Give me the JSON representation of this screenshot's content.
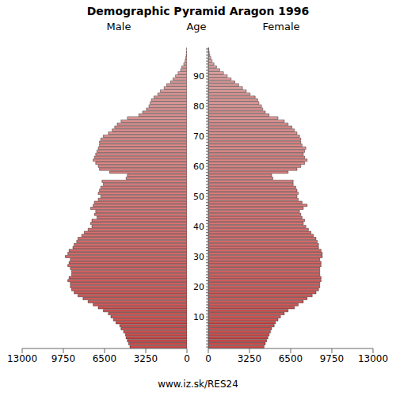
{
  "chart_data": {
    "type": "bar",
    "orientation": "horizontal",
    "title": "Demographic Pyramid Aragon 1996",
    "footer": "www.iz.sk/RES24",
    "y_label": "Age",
    "categories": [
      null,
      null,
      null,
      null,
      null,
      null,
      null,
      null,
      null,
      null,
      "10",
      null,
      null,
      null,
      null,
      null,
      null,
      null,
      null,
      null,
      "20",
      null,
      null,
      null,
      null,
      null,
      null,
      null,
      null,
      null,
      "30",
      null,
      null,
      null,
      null,
      null,
      null,
      null,
      null,
      null,
      "40",
      null,
      null,
      null,
      null,
      null,
      null,
      null,
      null,
      null,
      "50",
      null,
      null,
      null,
      null,
      null,
      null,
      null,
      null,
      null,
      "60",
      null,
      null,
      null,
      null,
      null,
      null,
      null,
      null,
      null,
      "70",
      null,
      null,
      null,
      null,
      null,
      null,
      null,
      null,
      null,
      "80",
      null,
      null,
      null,
      null,
      null,
      null,
      null,
      null,
      null,
      "90",
      null,
      null,
      null,
      null,
      null,
      null,
      null,
      null,
      null
    ],
    "series": [
      {
        "name": "Male",
        "color": "#d04848",
        "values": [
          4500,
          4600,
          4700,
          4800,
          4850,
          5000,
          5200,
          5300,
          5600,
          5800,
          6000,
          6200,
          6600,
          7000,
          7400,
          7800,
          8200,
          8600,
          8900,
          9100,
          9200,
          9200,
          9400,
          9300,
          9100,
          9100,
          9200,
          9400,
          9300,
          9200,
          9600,
          9400,
          9300,
          9000,
          8900,
          8700,
          8600,
          8300,
          8100,
          7800,
          7500,
          7600,
          7500,
          7100,
          7300,
          7200,
          7600,
          7400,
          7300,
          7000,
          6800,
          7000,
          6900,
          6800,
          6600,
          6700,
          4800,
          4700,
          6100,
          6900,
          7000,
          7200,
          7400,
          7300,
          7200,
          7100,
          7000,
          6900,
          6900,
          6800,
          6600,
          6200,
          5900,
          5700,
          5500,
          5200,
          4700,
          3800,
          3500,
          3200,
          3000,
          2900,
          2800,
          2600,
          2300,
          2100,
          1800,
          1600,
          1300,
          1100,
          900,
          700,
          500,
          400,
          250,
          150,
          100,
          60,
          30,
          15
        ]
      },
      {
        "name": "Female",
        "color": "#d04848",
        "values": [
          4400,
          4500,
          4600,
          4700,
          4800,
          4900,
          5000,
          5200,
          5300,
          5500,
          5700,
          6000,
          6300,
          6800,
          7100,
          7500,
          7800,
          8200,
          8500,
          8700,
          8800,
          8800,
          8900,
          8900,
          8800,
          8800,
          8800,
          8900,
          8900,
          8800,
          9000,
          9000,
          8900,
          8700,
          8700,
          8600,
          8500,
          8300,
          8100,
          7900,
          7700,
          7500,
          7600,
          7400,
          7300,
          7200,
          7500,
          7800,
          7400,
          7100,
          7000,
          7100,
          7000,
          6900,
          6700,
          6700,
          5100,
          5000,
          6300,
          7000,
          7300,
          7600,
          7800,
          7600,
          7500,
          7600,
          7700,
          7400,
          7300,
          7300,
          7200,
          7000,
          6800,
          6600,
          6300,
          6000,
          5500,
          4800,
          4500,
          4300,
          4200,
          4000,
          3900,
          3700,
          3300,
          3000,
          2700,
          2400,
          2100,
          1800,
          1500,
          1200,
          900,
          650,
          450,
          300,
          200,
          120,
          70,
          35
        ]
      }
    ],
    "xlim": [
      0,
      13000
    ],
    "xticks": [
      0,
      3250,
      6500,
      9750,
      13000
    ]
  }
}
